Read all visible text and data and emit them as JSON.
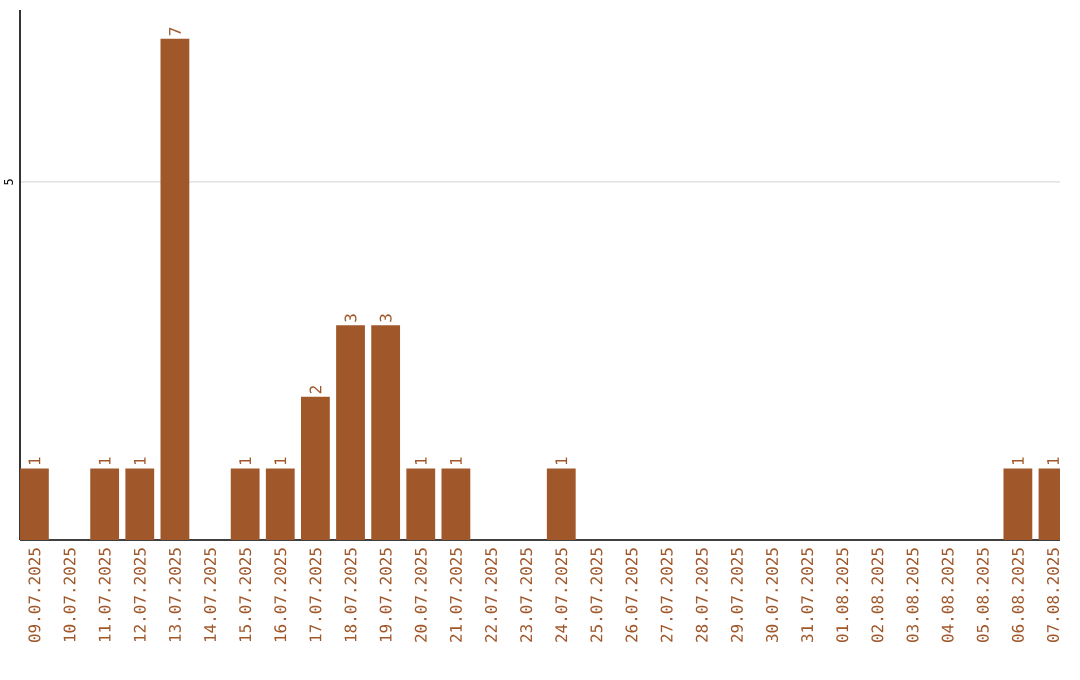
{
  "chart_data": {
    "type": "bar",
    "categories": [
      "09.07.2025",
      "10.07.2025",
      "11.07.2025",
      "12.07.2025",
      "13.07.2025",
      "14.07.2025",
      "15.07.2025",
      "16.07.2025",
      "17.07.2025",
      "18.07.2025",
      "19.07.2025",
      "20.07.2025",
      "21.07.2025",
      "22.07.2025",
      "23.07.2025",
      "24.07.2025",
      "25.07.2025",
      "26.07.2025",
      "27.07.2025",
      "28.07.2025",
      "29.07.2025",
      "30.07.2025",
      "31.07.2025",
      "01.08.2025",
      "02.08.2025",
      "03.08.2025",
      "04.08.2025",
      "05.08.2025",
      "06.08.2025",
      "07.08.2025"
    ],
    "values": [
      1,
      0,
      1,
      1,
      7,
      0,
      1,
      1,
      2,
      3,
      3,
      1,
      1,
      0,
      0,
      1,
      0,
      0,
      0,
      0,
      0,
      0,
      0,
      0,
      0,
      0,
      0,
      0,
      1,
      1
    ],
    "value_labels": [
      "1",
      null,
      "1",
      "1",
      "7",
      null,
      "1",
      "1",
      "2",
      "3",
      "3",
      "1",
      "1",
      null,
      null,
      "1",
      null,
      null,
      null,
      null,
      null,
      null,
      null,
      null,
      null,
      null,
      null,
      null,
      "1",
      "1"
    ],
    "color": "#a0572a",
    "ylim": [
      0,
      7.4
    ],
    "yticks": [
      5
    ],
    "grid": "y"
  }
}
